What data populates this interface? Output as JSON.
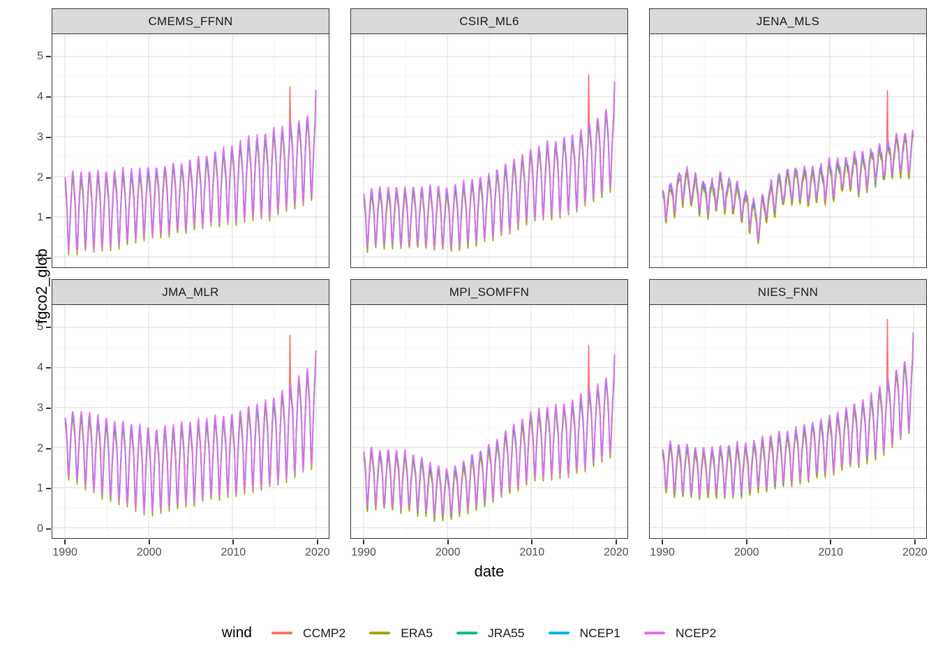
{
  "chart_data": {
    "type": "line",
    "xlabel": "date",
    "ylabel": "fgco2_glob",
    "x_ticks": [
      "1990",
      "2000",
      "2010",
      "2020"
    ],
    "x_tick_values": [
      1990,
      2000,
      2010,
      2020
    ],
    "x_minor": [
      1995,
      2005,
      2015
    ],
    "y_ticks": [
      "0",
      "1",
      "2",
      "3",
      "4",
      "5"
    ],
    "y_tick_values": [
      0,
      1,
      2,
      3,
      4,
      5
    ],
    "y_minor": [
      0.5,
      1.5,
      2.5,
      3.5,
      4.5,
      5.5
    ],
    "x_domain": [
      1988.5,
      2021.5
    ],
    "y_domain": [
      -0.26,
      5.56
    ],
    "grid": true,
    "resolution": "monthly 1990-2019",
    "legend": {
      "title": "wind",
      "position": "bottom"
    },
    "series": [
      {
        "name": "CCMP2",
        "color": "#F8766D",
        "offset": -0.06,
        "amp_scale": 1.02
      },
      {
        "name": "ERA5",
        "color": "#A3A500",
        "offset": -0.1,
        "amp_scale": 1.06
      },
      {
        "name": "JRA55",
        "color": "#00BF7D",
        "offset": 0.01,
        "amp_scale": 1.08
      },
      {
        "name": "NCEP1",
        "color": "#00B0F6",
        "offset": 0.03,
        "amp_scale": 1.0
      },
      {
        "name": "NCEP2",
        "color": "#E76BF3",
        "offset": 0.04,
        "amp_scale": 1.12
      }
    ],
    "spike_series": "CCMP2",
    "panels": [
      {
        "title": "CMEMS_FFNN",
        "trend": {
          "years": [
            1990,
            1995,
            2000,
            2005,
            2010,
            2015,
            2020
          ],
          "values": [
            1.25,
            1.3,
            1.45,
            1.65,
            1.95,
            2.25,
            2.65
          ]
        },
        "amplitude": {
          "years": [
            1990,
            1995,
            2000,
            2005,
            2010,
            2015,
            2020
          ],
          "values": [
            1.0,
            0.95,
            0.85,
            0.85,
            0.95,
            1.05,
            1.05
          ]
        },
        "noise": 0.08,
        "ccmp2_spike": {
          "year": 2016.9,
          "value": 4.25
        },
        "end_value": 4.15
      },
      {
        "title": "CSIR_ML6",
        "trend": {
          "years": [
            1990,
            1995,
            2000,
            2005,
            2010,
            2015,
            2020
          ],
          "values": [
            1.05,
            1.1,
            1.05,
            1.35,
            1.9,
            2.2,
            2.9
          ]
        },
        "amplitude": {
          "years": [
            1990,
            1995,
            2000,
            2005,
            2010,
            2015,
            2020
          ],
          "values": [
            0.72,
            0.72,
            0.75,
            0.8,
            0.9,
            0.95,
            1.05
          ]
        },
        "noise": 0.07,
        "ccmp2_spike": {
          "year": 2016.9,
          "value": 4.55
        },
        "end_value": 4.35
      },
      {
        "title": "JENA_MLS",
        "trend": {
          "years": [
            1990,
            1992.5,
            1995,
            1997,
            1999,
            2001.5,
            2003,
            2005,
            2008,
            2011,
            2014,
            2017,
            2020
          ],
          "values": [
            1.25,
            1.9,
            1.5,
            1.65,
            1.5,
            0.95,
            1.5,
            1.85,
            1.8,
            2.05,
            2.2,
            2.5,
            2.7
          ]
        },
        "amplitude": {
          "years": [
            1990,
            1995,
            2000,
            2005,
            2010,
            2015,
            2020
          ],
          "values": [
            0.4,
            0.4,
            0.42,
            0.42,
            0.45,
            0.45,
            0.5
          ]
        },
        "noise": 0.2,
        "ccmp2_spike": {
          "year": 2016.9,
          "value": 4.15
        },
        "end_value": 3.05
      },
      {
        "title": "JMA_MLR",
        "trend": {
          "years": [
            1990,
            1995,
            2000,
            2005,
            2010,
            2015,
            2020
          ],
          "values": [
            2.25,
            1.85,
            1.55,
            1.75,
            1.95,
            2.3,
            3.0
          ]
        },
        "amplitude": {
          "years": [
            1990,
            1995,
            2000,
            2005,
            2010,
            2015,
            2020
          ],
          "values": [
            0.8,
            1.0,
            1.05,
            1.0,
            1.0,
            1.1,
            1.25
          ]
        },
        "noise": 0.08,
        "ccmp2_spike": {
          "year": 2016.9,
          "value": 4.8
        },
        "end_value": 4.4
      },
      {
        "title": "MPI_SOMFFN",
        "trend": {
          "years": [
            1990,
            1995,
            2000,
            2005,
            2010,
            2015,
            2020
          ],
          "values": [
            1.35,
            1.25,
            0.9,
            1.45,
            2.15,
            2.35,
            3.0
          ]
        },
        "amplitude": {
          "years": [
            1990,
            1995,
            2000,
            2005,
            2010,
            2015,
            2020
          ],
          "values": [
            0.75,
            0.7,
            0.62,
            0.7,
            0.85,
            0.9,
            1.0
          ]
        },
        "noise": 0.09,
        "ccmp2_spike": {
          "year": 2016.9,
          "value": 4.55
        },
        "end_value": 4.3
      },
      {
        "title": "NIES_FNN",
        "trend": {
          "years": [
            1990,
            1995,
            2000,
            2005,
            2010,
            2015,
            2020
          ],
          "values": [
            1.6,
            1.45,
            1.55,
            1.85,
            2.15,
            2.6,
            3.55
          ]
        },
        "amplitude": {
          "years": [
            1990,
            1995,
            2000,
            2005,
            2010,
            2015,
            2020
          ],
          "values": [
            0.6,
            0.6,
            0.62,
            0.65,
            0.7,
            0.8,
            0.95
          ]
        },
        "noise": 0.07,
        "ccmp2_spike": {
          "year": 2016.9,
          "value": 5.2
        },
        "end_value": 4.85
      }
    ],
    "style_colors": {
      "strip_background": "#d9d9d9",
      "panel_border": "#333333",
      "grid_major": "#e5e5e5",
      "grid_minor": "#f2f2f2",
      "tick_label": "#4d4d4d",
      "axis_title": "#000000"
    }
  }
}
